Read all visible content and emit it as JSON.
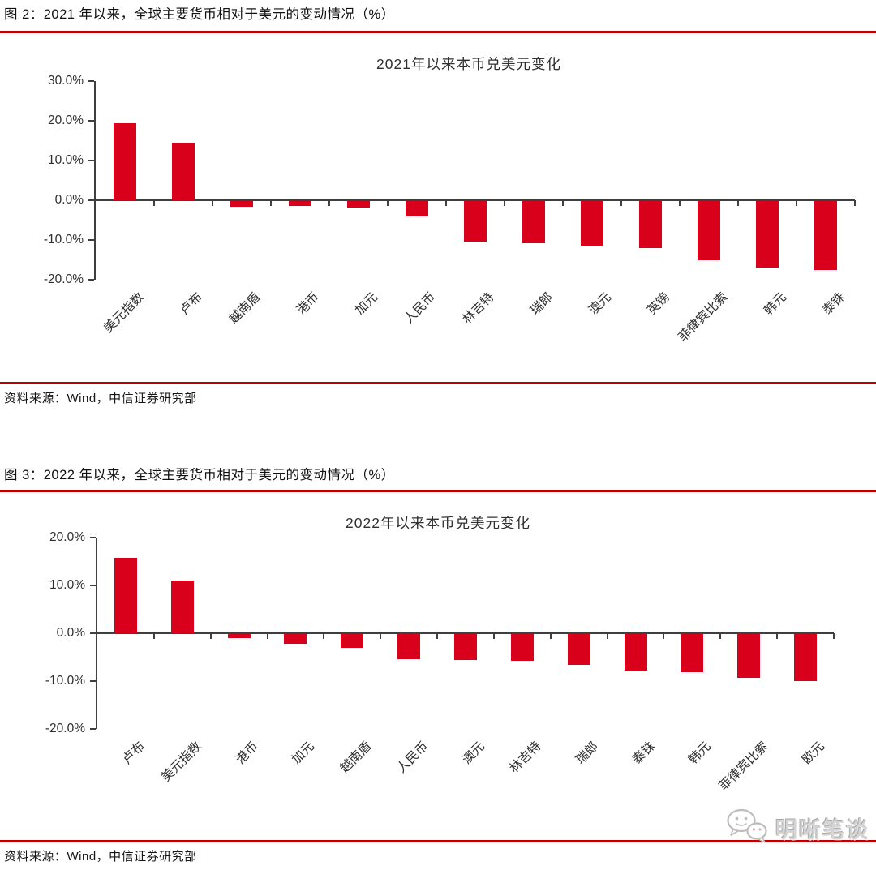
{
  "colors": {
    "bar": "#d9001b",
    "rule": "#c00000",
    "axis": "#3f3f3f"
  },
  "watermark": {
    "label": "明晰笔谈"
  },
  "chart_data": [
    {
      "type": "bar",
      "heading": "图 2：2021 年以来，全球主要货币相对于美元的变动情况（%）",
      "title": "2021年以来本币兑美元变化",
      "source": "资料来源：Wind，中信证券研究部",
      "categories": [
        "美元指数",
        "卢布",
        "越南盾",
        "港币",
        "加元",
        "人民币",
        "林吉特",
        "瑞郎",
        "澳元",
        "英镑",
        "菲律宾比索",
        "韩元",
        "泰铢"
      ],
      "values": [
        19.3,
        14.4,
        -1.4,
        -1.3,
        -1.6,
        -3.8,
        -10.2,
        -10.6,
        -11.2,
        -11.9,
        -14.8,
        -16.8,
        -17.4
      ],
      "unit": "%",
      "xlabel": "",
      "ylabel": "",
      "ylim": [
        -20,
        30
      ],
      "ytick_step": 10,
      "ytick_labels": [
        "30.0%",
        "20.0%",
        "10.0%",
        "0.0%",
        "-10.0%",
        "-20.0%"
      ],
      "grid": false,
      "legend": false,
      "bar_color": "#d9001b"
    },
    {
      "type": "bar",
      "heading": "图 3：2022 年以来，全球主要货币相对于美元的变动情况（%）",
      "title": "2022年以来本币兑美元变化",
      "source": "资料来源：Wind，中信证券研究部",
      "categories": [
        "卢布",
        "美元指数",
        "港币",
        "加元",
        "越南盾",
        "人民币",
        "澳元",
        "林吉特",
        "瑞郎",
        "泰铢",
        "韩元",
        "菲律宾比索",
        "欧元"
      ],
      "values": [
        15.7,
        11.0,
        -0.8,
        -2.0,
        -2.9,
        -5.3,
        -5.4,
        -5.6,
        -6.5,
        -7.7,
        -7.9,
        -9.2,
        -9.9
      ],
      "unit": "%",
      "xlabel": "",
      "ylabel": "",
      "ylim": [
        -20,
        20
      ],
      "ytick_step": 10,
      "ytick_labels": [
        "20.0%",
        "10.0%",
        "0.0%",
        "-10.0%",
        "-20.0%"
      ],
      "grid": false,
      "legend": false,
      "bar_color": "#d9001b"
    }
  ]
}
